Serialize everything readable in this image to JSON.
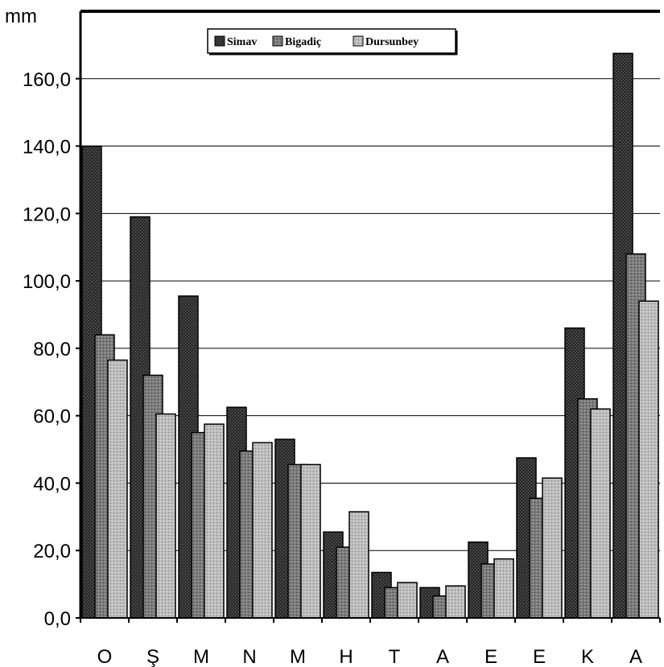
{
  "chart_data": {
    "type": "bar",
    "ylabel": "mm",
    "ylim": [
      0,
      180
    ],
    "yticks": [
      "0,0",
      "20,0",
      "40,0",
      "60,0",
      "80,0",
      "100,0",
      "120,0",
      "140,0",
      "160,0"
    ],
    "grid": true,
    "legend_position": "top-center",
    "categories": [
      "O",
      "Ş",
      "M",
      "N",
      "M",
      "H",
      "T",
      "A",
      "E",
      "E",
      "K",
      "A"
    ],
    "series": [
      {
        "name": "Simav",
        "color": "#3a3a3a",
        "values": [
          140.0,
          119.0,
          95.5,
          62.5,
          53.0,
          25.5,
          13.5,
          9.0,
          22.5,
          47.5,
          86.0,
          167.5
        ]
      },
      {
        "name": "Bigadiç",
        "color": "#7a7a7a",
        "values": [
          84.0,
          72.0,
          55.0,
          49.5,
          45.5,
          21.0,
          9.0,
          6.5,
          16.0,
          35.5,
          65.0,
          108.0
        ]
      },
      {
        "name": "Dursunbey",
        "color": "#b4b4b4",
        "values": [
          76.5,
          60.5,
          57.5,
          52.0,
          45.5,
          31.5,
          10.5,
          9.5,
          17.5,
          41.5,
          62.0,
          94.0
        ]
      }
    ]
  }
}
